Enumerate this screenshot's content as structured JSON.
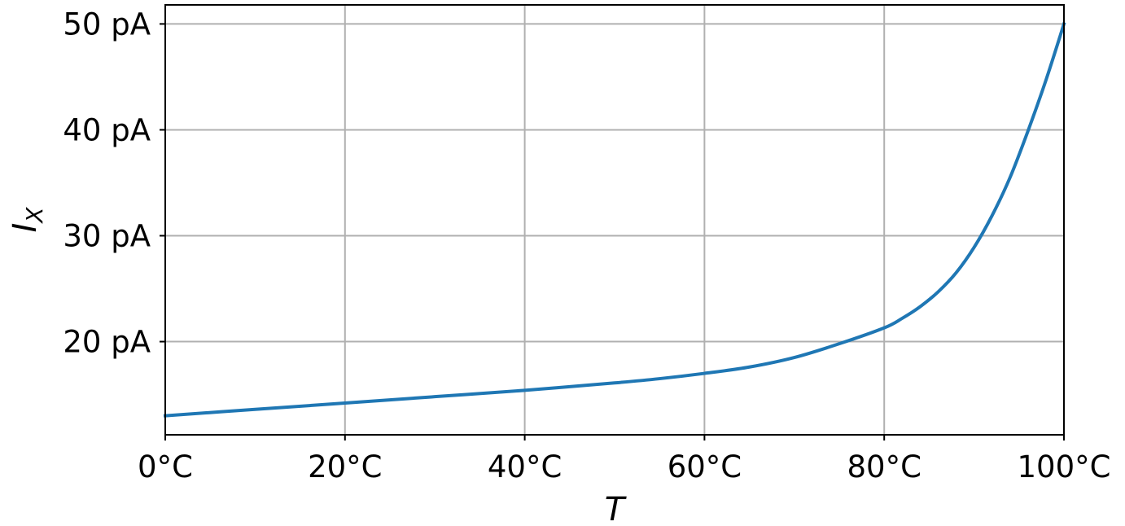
{
  "chart_data": {
    "type": "line",
    "title": "",
    "xlabel": "T",
    "ylabel": "I",
    "ylabel_subscript": "X",
    "xlim": [
      0,
      100
    ],
    "ylim": [
      11.2,
      51.8
    ],
    "x_ticks": [
      0,
      20,
      40,
      60,
      80,
      100
    ],
    "x_tick_labels": [
      "0°C",
      "20°C",
      "40°C",
      "60°C",
      "80°C",
      "100°C"
    ],
    "y_ticks": [
      20,
      30,
      40,
      50
    ],
    "y_tick_labels": [
      "20 pA",
      "30 pA",
      "40 pA",
      "50 pA"
    ],
    "grid": true,
    "legend": "none",
    "series": [
      {
        "color": "#1f77b4",
        "x": [
          0,
          10,
          20,
          30,
          40,
          50,
          55,
          60,
          65,
          70,
          75,
          80,
          82,
          84,
          86,
          88,
          90,
          92,
          94,
          96,
          98,
          100
        ],
        "y": [
          13.0,
          13.6,
          14.2,
          14.8,
          15.4,
          16.1,
          16.5,
          17.0,
          17.6,
          18.5,
          19.8,
          21.3,
          22.2,
          23.3,
          24.7,
          26.5,
          28.9,
          31.9,
          35.5,
          39.9,
          44.7,
          50.0
        ]
      }
    ]
  }
}
